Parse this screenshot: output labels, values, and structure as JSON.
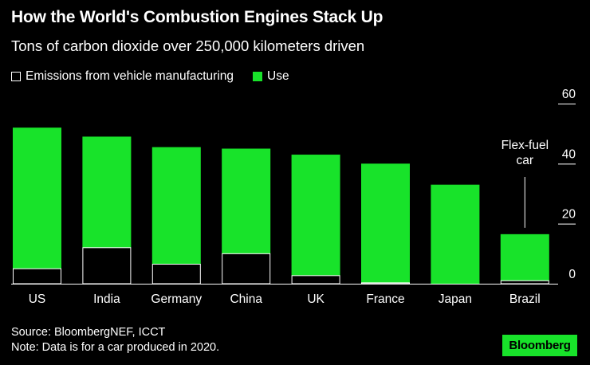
{
  "title": "How the World's Combustion Engines Stack Up",
  "subtitle": "Tons of carbon dioxide over 250,000 kilometers driven",
  "legend": {
    "manufacturing": "Emissions from vehicle manufacturing",
    "use": "Use"
  },
  "colors": {
    "use": "#18e32a",
    "background": "#000000",
    "text": "#ffffff"
  },
  "chart_data": {
    "type": "bar",
    "stacked": true,
    "categories": [
      "US",
      "India",
      "Germany",
      "China",
      "UK",
      "France",
      "Japan",
      "Brazil"
    ],
    "series": [
      {
        "name": "Emissions from vehicle manufacturing",
        "values": [
          5,
          12,
          6.5,
          10,
          2.7,
          0.3,
          0,
          1
        ]
      },
      {
        "name": "Use",
        "values": [
          47,
          37,
          39,
          35,
          40.3,
          39.7,
          33,
          15.5
        ]
      }
    ],
    "ylim": [
      0,
      60
    ],
    "yticks": [
      "0",
      "20",
      "40",
      "60"
    ],
    "annotation": {
      "category": "Brazil",
      "lines": [
        "Flex-fuel",
        "car"
      ]
    }
  },
  "footer": {
    "source": "Source: BloombergNEF, ICCT",
    "note": "Note: Data is for a car produced in 2020."
  },
  "logo": "Bloomberg"
}
